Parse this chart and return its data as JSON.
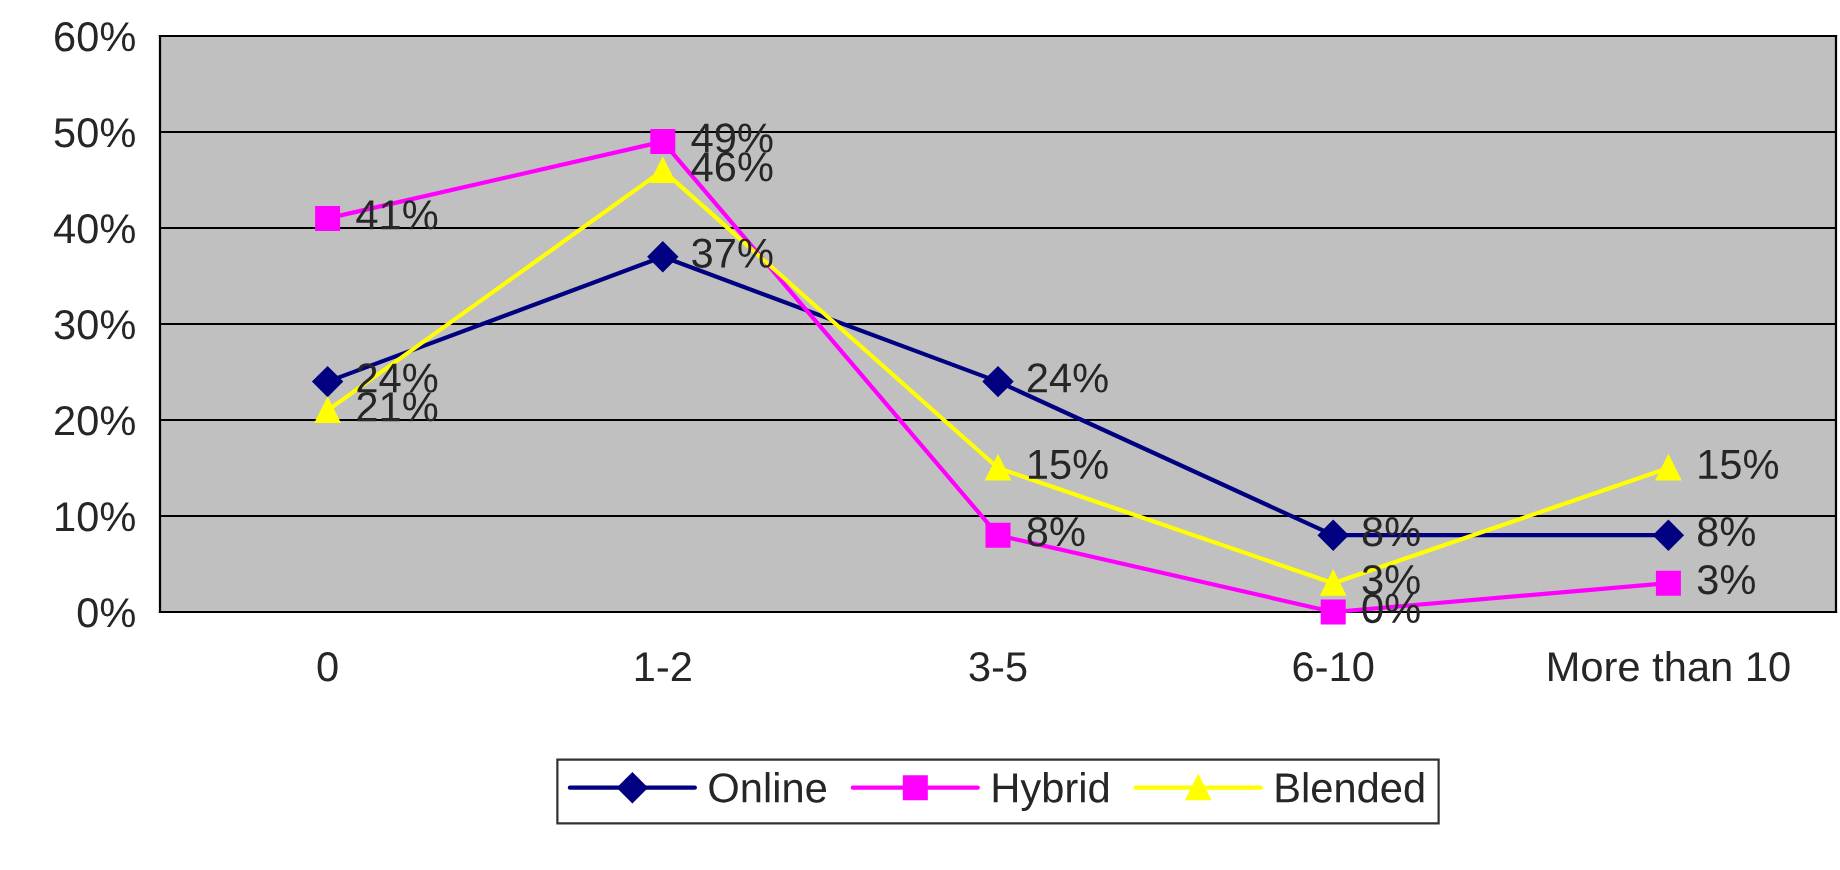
{
  "chart_data": {
    "type": "line",
    "categories": [
      "0",
      "1-2",
      "3-5",
      "6-10",
      "More than 10"
    ],
    "series": [
      {
        "name": "Online",
        "color": "#000080",
        "marker": "diamond",
        "values": [
          24,
          37,
          24,
          8,
          8
        ],
        "value_labels": [
          "24%",
          "37%",
          "24%",
          "8%",
          "8%"
        ]
      },
      {
        "name": "Hybrid",
        "color": "#ff00ff",
        "marker": "square",
        "values": [
          41,
          49,
          8,
          0,
          3
        ],
        "value_labels": [
          "41%",
          "49%",
          "8%",
          "0%",
          "3%"
        ]
      },
      {
        "name": "Blended",
        "color": "#ffff00",
        "marker": "triangle",
        "values": [
          21,
          46,
          15,
          3,
          15
        ],
        "value_labels": [
          "21%",
          "46%",
          "15%",
          "3%",
          "15%"
        ]
      }
    ],
    "ylim": [
      0,
      60
    ],
    "yticks": [
      {
        "value": 0,
        "label": "0%"
      },
      {
        "value": 10,
        "label": "10%"
      },
      {
        "value": 20,
        "label": "20%"
      },
      {
        "value": 30,
        "label": "30%"
      },
      {
        "value": 40,
        "label": "40%"
      },
      {
        "value": 50,
        "label": "50%"
      },
      {
        "value": 60,
        "label": "60%"
      }
    ],
    "grid": "y",
    "legend": "bottom"
  }
}
